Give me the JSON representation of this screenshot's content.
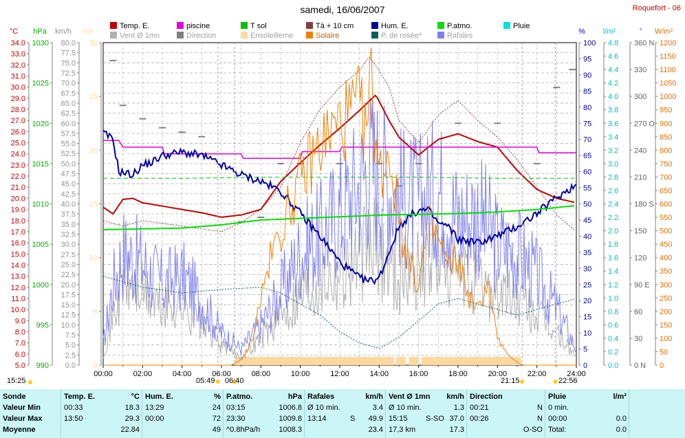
{
  "header": {
    "title": "samedi, 16/06/2007",
    "station": "Roquefort - 06"
  },
  "legend": [
    {
      "label": "Temp. E.",
      "color": "#c00000"
    },
    {
      "label": "piscine",
      "color": "#e000e0"
    },
    {
      "label": "T sol",
      "color": "#00c000"
    },
    {
      "label": "Tà + 10 cm",
      "color": "#804040"
    },
    {
      "label": "Hum. E.",
      "color": "#0000a0"
    },
    {
      "label": "P.atmo.",
      "color": "#00e000"
    },
    {
      "label": "Pluie",
      "color": "#00e0e0"
    },
    {
      "label": "Vent Ø 1mn",
      "color": "#b0b0b0"
    },
    {
      "label": "Direction",
      "color": "#808080"
    },
    {
      "label": "Ensoleilleme",
      "color": "#ffd8a0"
    },
    {
      "label": "Solaire",
      "color": "#f08000"
    },
    {
      "label": "P. de rosée*",
      "color": "#006060"
    },
    {
      "label": "Rafales",
      "color": "#8080f0"
    }
  ],
  "axes": {
    "left_units": [
      {
        "unit": "°C",
        "color": "#c00000"
      },
      {
        "unit": "hPa",
        "color": "#00b000"
      },
      {
        "unit": "km/h",
        "color": "#909090"
      },
      {
        "unit": "min",
        "color": "#ffd8a0"
      }
    ],
    "right_units": [
      {
        "unit": "%",
        "color": "#0000a0"
      },
      {
        "unit": "l/m²",
        "color": "#00c0c0"
      },
      {
        "unit": "°",
        "color": "#606060"
      },
      {
        "unit": "W/m²",
        "color": "#e07000"
      }
    ],
    "temp_ticks": [
      "34.0",
      "33.0",
      "32.0",
      "31.0",
      "30.0",
      "29.0",
      "28.0",
      "27.0",
      "26.0",
      "25.0",
      "24.0",
      "23.0",
      "22.0",
      "21.0",
      "20.0",
      "19.0",
      "18.0",
      "17.0",
      "16.0",
      "15.0",
      "14.0",
      "13.0",
      "12.0",
      "11.0",
      "10.0",
      "9.0",
      "8.0",
      "7.0",
      "6.0",
      "5.0"
    ],
    "hpa_ticks": [
      "1030",
      "1025",
      "1020",
      "1015",
      "1010",
      "1005",
      "1000",
      "995",
      "990"
    ],
    "kmh_ticks": [
      "80.0",
      "77.5",
      "75.0",
      "72.5",
      "70.0",
      "67.5",
      "65.0",
      "62.5",
      "60.0",
      "57.5",
      "55.0",
      "52.5",
      "50.0",
      "47.5",
      "45.0",
      "42.5",
      "40.0",
      "37.5",
      "35.0",
      "32.5",
      "30.0",
      "27.5",
      "25.0",
      "22.5",
      "20.0",
      "17.5",
      "15.0",
      "12.5",
      "10.0",
      "7.5",
      "5.0",
      "2.5",
      "0.0"
    ],
    "min_ticks": [
      "30",
      "25",
      "20",
      "15",
      "10",
      "5",
      "0"
    ],
    "pct_ticks": [
      "100",
      "95",
      "90",
      "85",
      "80",
      "75",
      "70",
      "65",
      "60",
      "55",
      "50",
      "45",
      "40",
      "35",
      "30",
      "25",
      "20",
      "15",
      "10",
      "5",
      "0"
    ],
    "rain_ticks": [
      "4.8",
      "4.6",
      "4.4",
      "4.2",
      "4.0",
      "3.8",
      "3.6",
      "3.4",
      "3.2",
      "3.0",
      "2.8",
      "2.6",
      "2.4",
      "2.2",
      "2.0",
      "1.8",
      "1.6",
      "1.4",
      "1.2",
      "1.0",
      "0.8",
      "0.6",
      "0.4",
      "0.2",
      "0.0"
    ],
    "dir_ticks": [
      "360 N",
      "330",
      "300",
      "270 O",
      "240",
      "210",
      "180 S",
      "150",
      "120",
      "90 E",
      "60",
      "30",
      "0 N"
    ],
    "wm2_ticks": [
      "1200",
      "1150",
      "1100",
      "1050",
      "1000",
      "950",
      "900",
      "850",
      "800",
      "750",
      "700",
      "650",
      "600",
      "550",
      "500",
      "450",
      "400",
      "350",
      "300",
      "250",
      "200",
      "150",
      "100",
      "50",
      "0"
    ],
    "time_ticks": [
      "00:00",
      "02:00",
      "04:00",
      "06:00",
      "08:00",
      "10:00",
      "12:00",
      "14:00",
      "16:00",
      "18:00",
      "20:00",
      "22:00",
      "24:00"
    ]
  },
  "sun": {
    "dawn": "05:49",
    "sunrise": "06:40",
    "sunset": "21:15",
    "dusk": "22:56",
    "day_start": "15:25"
  },
  "chart_data": {
    "type": "line",
    "x_unit": "hours",
    "xlim": [
      0,
      24
    ],
    "series": [
      {
        "name": "Temp. E.",
        "color": "#c00000",
        "axis": "°C",
        "ylim": [
          5,
          34
        ],
        "x": [
          0,
          0.5,
          1,
          1.5,
          2,
          3,
          4,
          5,
          6,
          7,
          8,
          9,
          10,
          11,
          12,
          13,
          13.83,
          14.5,
          15,
          16,
          17,
          18,
          19,
          20,
          21,
          22,
          23,
          24
        ],
        "values": [
          19.2,
          18.6,
          19.9,
          20.0,
          19.6,
          19.3,
          19.0,
          18.7,
          18.3,
          18.5,
          19.0,
          21.5,
          23.2,
          24.8,
          26.3,
          27.9,
          29.3,
          27.0,
          25.5,
          23.9,
          25.3,
          25.8,
          25.1,
          24.6,
          22.5,
          20.8,
          20.0,
          19.6
        ]
      },
      {
        "name": "piscine",
        "color": "#e000e0",
        "axis": "°C",
        "ylim": [
          5,
          34
        ],
        "x": [
          0,
          0.8,
          1,
          3,
          3.1,
          7,
          7.1,
          10,
          10.1,
          12,
          12.1,
          22,
          22.1,
          24
        ],
        "values": [
          25.2,
          25.2,
          24.6,
          24.6,
          24.0,
          24.0,
          23.6,
          23.6,
          24.2,
          24.2,
          24.6,
          24.6,
          24.1,
          24.1
        ]
      },
      {
        "name": "Tà + 10 cm",
        "color": "#804040",
        "axis": "°C",
        "ylim": [
          5,
          34
        ],
        "x": [
          0,
          1,
          2,
          4,
          6,
          7,
          8,
          9,
          10,
          11,
          12,
          13,
          13.5,
          14,
          14.5,
          15,
          16,
          17,
          18,
          19,
          20,
          21,
          22,
          23,
          24
        ],
        "values": [
          18.0,
          17.5,
          18.0,
          17.5,
          17.0,
          17.8,
          19.0,
          21.0,
          25.0,
          28.0,
          30.0,
          31.5,
          32.7,
          31.5,
          30.0,
          27.0,
          25.0,
          27.5,
          28.8,
          27.0,
          25.5,
          23.5,
          21.0,
          18.5,
          17.0
        ]
      },
      {
        "name": "T sol",
        "color": "#00c000",
        "axis": "°C",
        "ylim": [
          5,
          34
        ],
        "x": [
          0,
          4,
          8,
          12,
          16,
          20,
          24
        ],
        "values": [
          21.8,
          21.8,
          21.9,
          21.9,
          21.9,
          21.8,
          21.8
        ]
      },
      {
        "name": "P. de rosée*",
        "color": "#006060",
        "axis": "°C",
        "ylim": [
          5,
          34
        ],
        "x": [
          0,
          2,
          4,
          6,
          8,
          9,
          10,
          11,
          12,
          13,
          14,
          15,
          16,
          17,
          18,
          19,
          20,
          21,
          22,
          23,
          24
        ],
        "values": [
          13.0,
          12.0,
          11.5,
          11.8,
          12.0,
          11.5,
          10.5,
          9.5,
          8.0,
          7.0,
          6.5,
          7.5,
          9.0,
          10.5,
          11.0,
          10.5,
          10.0,
          9.5,
          10.0,
          10.5,
          11.0
        ]
      },
      {
        "name": "Hum. E.",
        "color": "#0000a0",
        "axis": "%",
        "ylim": [
          0,
          100
        ],
        "x": [
          0,
          0.5,
          0.8,
          1.5,
          2,
          2.5,
          3,
          4,
          5,
          6,
          7,
          8,
          9,
          10,
          11,
          12,
          13,
          13.5,
          14,
          14.5,
          15,
          15.5,
          16,
          16.5,
          17,
          17.5,
          18,
          19,
          20,
          21,
          22,
          23,
          24
        ],
        "values": [
          72,
          70,
          60,
          59,
          62,
          63,
          65,
          66,
          65,
          62,
          59,
          57,
          54,
          47,
          40,
          32,
          27,
          26,
          27,
          35,
          43,
          46,
          48,
          48,
          44,
          43,
          39,
          38,
          40,
          43,
          47,
          52,
          56
        ]
      },
      {
        "name": "P.atmo.",
        "color": "#00e000",
        "axis": "hPa",
        "ylim": [
          990,
          1030
        ],
        "x": [
          0,
          2,
          4,
          6,
          8,
          10,
          12,
          14,
          16,
          18,
          20,
          22,
          24
        ],
        "values": [
          1006.8,
          1006.9,
          1007.0,
          1007.4,
          1008.0,
          1008.2,
          1008.4,
          1008.6,
          1008.7,
          1008.8,
          1009.0,
          1009.3,
          1009.8
        ]
      },
      {
        "name": "Solaire",
        "color": "#f08000",
        "axis": "W/m²",
        "ylim": [
          0,
          1200
        ],
        "x": [
          0,
          6.5,
          7,
          7.5,
          8,
          8.5,
          9,
          9.5,
          10,
          10.5,
          11,
          11.5,
          12,
          12.5,
          13,
          13.3,
          13.6,
          14,
          14.5,
          15,
          15.5,
          16,
          16.5,
          17,
          17.5,
          18,
          18.5,
          19,
          19.5,
          20,
          20.5,
          21,
          21.3,
          24
        ],
        "values": [
          0,
          0,
          20,
          80,
          250,
          400,
          500,
          600,
          680,
          760,
          820,
          860,
          900,
          930,
          960,
          850,
          1050,
          700,
          800,
          550,
          380,
          300,
          520,
          470,
          360,
          400,
          260,
          200,
          320,
          100,
          40,
          10,
          0,
          0
        ]
      },
      {
        "name": "Rafales",
        "color": "#8080f0",
        "axis": "km/h",
        "ylim": [
          0,
          80
        ],
        "x": [
          0,
          0.5,
          1,
          2,
          3,
          4,
          5,
          6,
          7,
          8,
          9,
          10,
          11,
          12,
          13,
          13.5,
          14,
          15,
          16,
          17,
          18,
          19,
          20,
          21,
          22,
          23,
          24
        ],
        "values": [
          5,
          20,
          28,
          25,
          20,
          22,
          16,
          8,
          4,
          10,
          18,
          28,
          32,
          38,
          45,
          50,
          48,
          42,
          40,
          44,
          36,
          38,
          30,
          28,
          22,
          14,
          4
        ]
      },
      {
        "name": "Vent Ø 1mn",
        "color": "#b0b0b0",
        "axis": "km/h",
        "ylim": [
          0,
          80
        ],
        "x": [
          0,
          0.5,
          1,
          2,
          3,
          4,
          5,
          6,
          7,
          8,
          9,
          10,
          11,
          12,
          13,
          13.5,
          14,
          15,
          16,
          17,
          18,
          19,
          20,
          21,
          22,
          23,
          24
        ],
        "values": [
          3,
          12,
          20,
          18,
          14,
          15,
          10,
          5,
          2,
          7,
          12,
          18,
          22,
          24,
          26,
          30,
          28,
          22,
          24,
          26,
          22,
          20,
          18,
          16,
          12,
          8,
          2
        ]
      },
      {
        "name": "Direction",
        "color": "#808080",
        "axis": "°",
        "ylim": [
          0,
          360
        ],
        "x": [
          0.5,
          1,
          2,
          3,
          4,
          5,
          7,
          8,
          9,
          10,
          12,
          14,
          15,
          16,
          18,
          20,
          22,
          23,
          23.8
        ],
        "values": [
          340,
          290,
          275,
          265,
          260,
          255,
          160,
          165,
          225,
          225,
          225,
          225,
          200,
          225,
          270,
          270,
          225,
          310,
          330
        ]
      },
      {
        "name": "Ensoleilleme",
        "color": "#ffd8a0",
        "axis": "min",
        "intervals": [
          [
            6.67,
            14.75
          ],
          [
            14.85,
            15.35
          ],
          [
            15.5,
            16.0
          ],
          [
            16.15,
            21.2
          ]
        ]
      }
    ]
  },
  "summary": {
    "headers": [
      {
        "title": "Sonde",
        "unit": ""
      },
      {
        "title": "Temp. E.",
        "unit": "°C"
      },
      {
        "title": "Hum. E.",
        "unit": "%"
      },
      {
        "title": "P.atmo.",
        "unit": "hPa"
      },
      {
        "title": "Rafales",
        "unit": "km/h"
      },
      {
        "title": "Vent Ø 1mn",
        "unit": "km/h"
      },
      {
        "title": "Direction",
        "unit": ""
      },
      {
        "title": "Pluie",
        "unit": "l/m²"
      }
    ],
    "row_labels": [
      "Valeur Min",
      "Valeur Max",
      "Moyenne"
    ],
    "temp": [
      {
        "t": "00:33",
        "v": "18.3"
      },
      {
        "t": "13:50",
        "v": "29.3"
      },
      {
        "t": "",
        "v": "22.84"
      }
    ],
    "hum": [
      {
        "t": "13:29",
        "v": "24"
      },
      {
        "t": "00:00",
        "v": "72"
      },
      {
        "t": "",
        "v": "49"
      }
    ],
    "patmo": [
      {
        "t": "03:15",
        "v": "1006.8"
      },
      {
        "t": "23:30",
        "v": "1009.8"
      },
      {
        "t": "^0.8hPa/h",
        "v": "1008.3"
      }
    ],
    "rafales": [
      {
        "t": "Ø 10 min.",
        "m": "",
        "v": "3.4"
      },
      {
        "t": "13:14",
        "m": "S",
        "v": "49.9"
      },
      {
        "t": "",
        "m": "",
        "v": "23.4"
      }
    ],
    "vent": [
      {
        "t": "Ø 10 min.",
        "m": "",
        "v": "1.3"
      },
      {
        "t": "15:15",
        "m": "S-SO",
        "v": "37.0"
      },
      {
        "t": "17,3 km",
        "m": "",
        "v": "17.3"
      }
    ],
    "direction": [
      {
        "t": "00:21",
        "v": "N"
      },
      {
        "t": "00:26",
        "v": "N"
      },
      {
        "t": "",
        "v": "O-SO"
      }
    ],
    "pluie": [
      {
        "t": "0 min.",
        "v": ""
      },
      {
        "t": "00:00",
        "v": "0.0"
      },
      {
        "t": "Total:",
        "v": "0.0"
      }
    ]
  }
}
